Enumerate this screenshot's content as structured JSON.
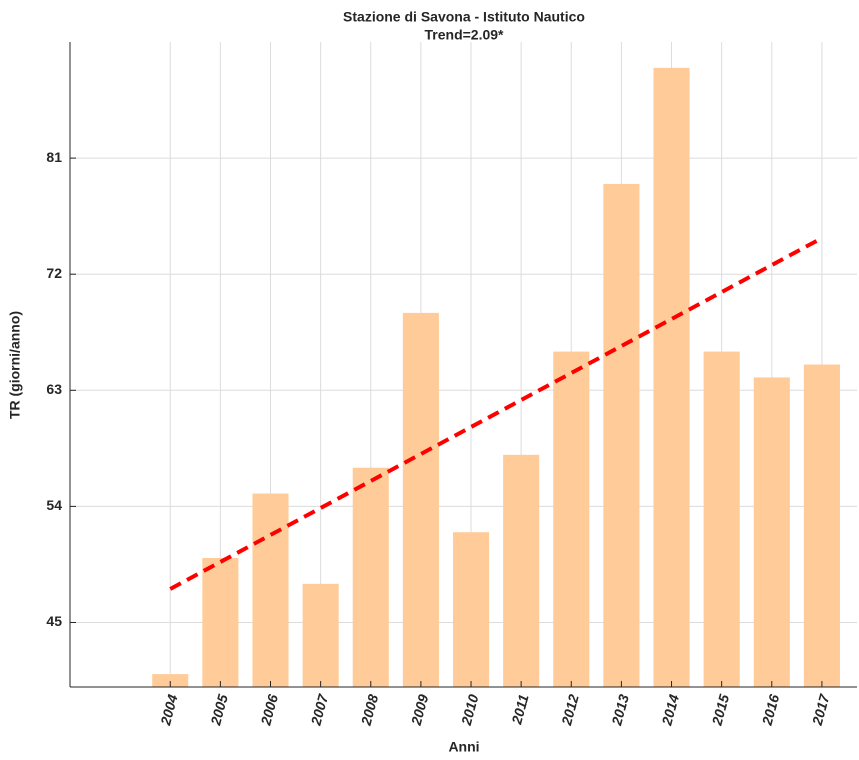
{
  "chart_data": {
    "type": "bar",
    "title": "Stazione di Savona - Istituto Nautico",
    "subtitle": "Trend=2.09*",
    "x_label": "Anni",
    "y_label": "TR (giorni/anno)",
    "x": [
      2004,
      2005,
      2006,
      2007,
      2008,
      2009,
      2010,
      2011,
      2012,
      2013,
      2014,
      2015,
      2016,
      2017
    ],
    "values": [
      41,
      50,
      55,
      48,
      57,
      69,
      52,
      58,
      66,
      79,
      88,
      66,
      64,
      65
    ],
    "color": "#ffcc99",
    "trend": {
      "x": [
        2004,
        2017
      ],
      "values": [
        47.6,
        74.8
      ],
      "color": "#ff0000"
    },
    "xlim": [
      2002,
      2017.7
    ],
    "xticks": [
      2004,
      2005,
      2006,
      2007,
      2008,
      2009,
      2010,
      2011,
      2012,
      2013,
      2014,
      2015,
      2016,
      2017
    ],
    "ylim": [
      40,
      90
    ],
    "yticks": [
      45,
      54,
      63,
      72,
      81
    ],
    "grid": true
  }
}
